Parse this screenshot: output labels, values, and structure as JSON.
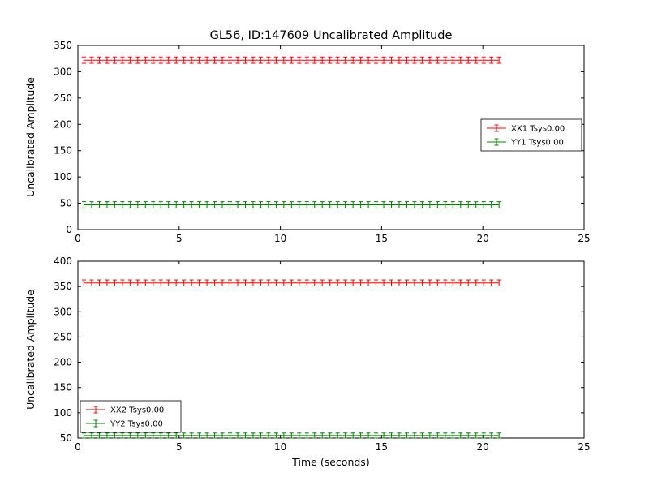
{
  "title": "GL56, ID:147609 Uncalibrated Amplitude",
  "xlabel": "Time (seconds)",
  "colors": {
    "xx": "#ff0000",
    "yy": "#008000",
    "axis": "#000000",
    "background": "#ffffff"
  },
  "chart_data": [
    {
      "type": "errorbar",
      "title": "GL56, ID:147609 Uncalibrated Amplitude",
      "ylabel": "Uncalibrated Amplitude",
      "xlabel": "",
      "xlim": [
        0,
        25
      ],
      "ylim": [
        0,
        350
      ],
      "xticks": [
        0,
        5,
        10,
        15,
        20,
        25
      ],
      "yticks": [
        0,
        50,
        100,
        150,
        200,
        250,
        300,
        350
      ],
      "x_start": 0.3,
      "x_end": 20.8,
      "n_points": 55,
      "legend_position": "center right",
      "series": [
        {
          "name": "XX1 Tsys0.00",
          "color": "#ff0000",
          "y_const": 322,
          "yerr": 6
        },
        {
          "name": "YY1 Tsys0.00",
          "color": "#008000",
          "y_const": 47,
          "yerr": 6
        }
      ]
    },
    {
      "type": "errorbar",
      "title": "",
      "ylabel": "Uncalibrated Amplitude",
      "xlabel": "Time (seconds)",
      "xlim": [
        0,
        25
      ],
      "ylim": [
        50,
        400
      ],
      "xticks": [
        0,
        5,
        10,
        15,
        20,
        25
      ],
      "yticks": [
        50,
        100,
        150,
        200,
        250,
        300,
        350,
        400
      ],
      "x_start": 0.3,
      "x_end": 20.8,
      "n_points": 55,
      "legend_position": "lower left",
      "series": [
        {
          "name": "XX2 Tsys0.00",
          "color": "#ff0000",
          "y_const": 357,
          "yerr": 6
        },
        {
          "name": "YY2 Tsys0.00",
          "color": "#008000",
          "y_const": 55,
          "yerr": 5
        }
      ]
    }
  ],
  "legend": {
    "top": [
      "XX1 Tsys0.00",
      "YY1 Tsys0.00"
    ],
    "bottom": [
      "XX2 Tsys0.00",
      "YY2 Tsys0.00"
    ]
  }
}
